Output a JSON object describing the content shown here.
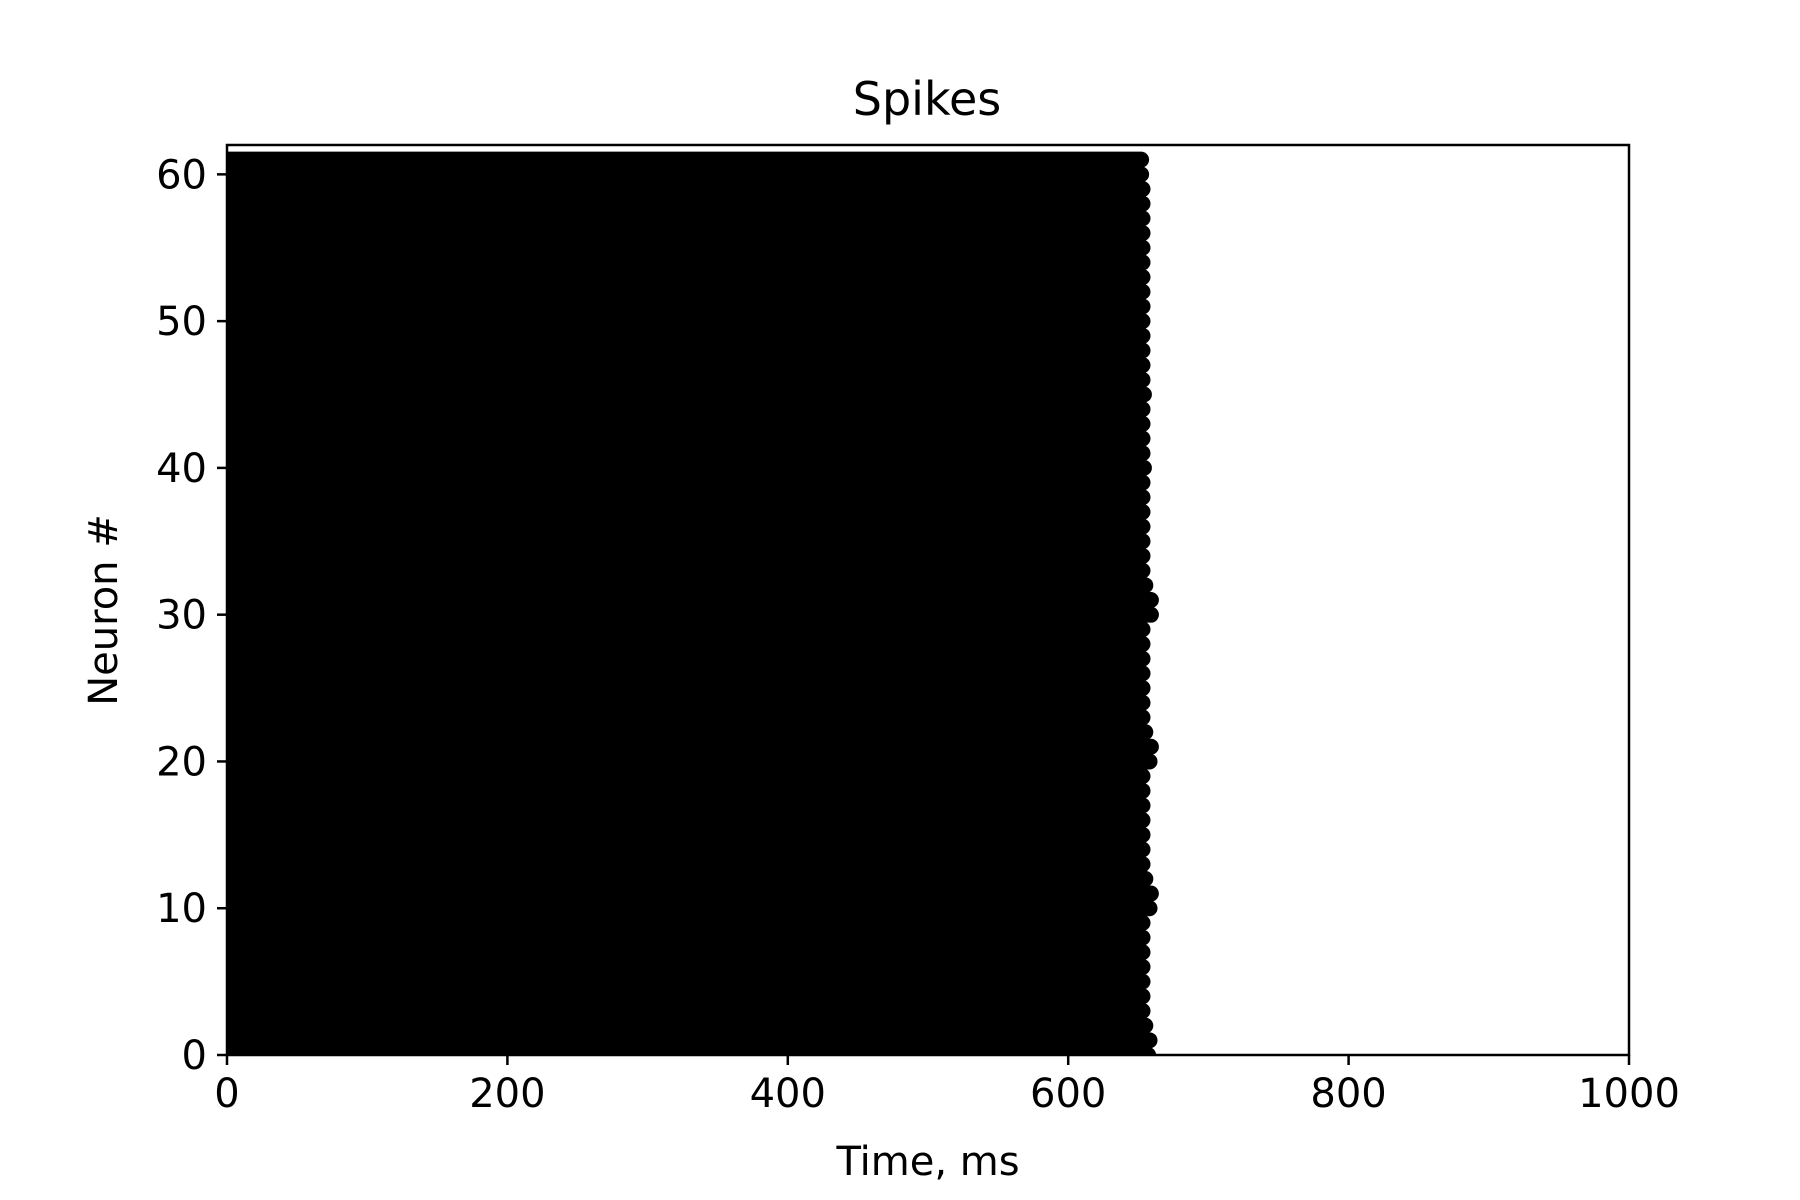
{
  "chart_data": {
    "type": "scatter",
    "title": "Spikes",
    "xlabel": "Time, ms",
    "ylabel": "Neuron #",
    "xlim": [
      0,
      1000
    ],
    "ylim": [
      0,
      62
    ],
    "xticks": [
      0,
      200,
      400,
      600,
      800,
      1000
    ],
    "yticks": [
      0,
      10,
      20,
      30,
      40,
      50,
      60
    ],
    "grid": false,
    "legend": "none",
    "marker_color": "#000000",
    "neurons": {
      "from": 0,
      "to": 61
    },
    "spike_window_ms": [
      0,
      655
    ],
    "spike_interval_ms": 2,
    "last_spike_ms": {
      "default": 653,
      "by_neuron": {
        "0": 657,
        "1": 658,
        "2": 655,
        "10": 658,
        "11": 659,
        "12": 655,
        "20": 658,
        "21": 659,
        "22": 655,
        "30": 659,
        "31": 659,
        "32": 655,
        "40": 654,
        "45": 654,
        "50": 653,
        "55": 653,
        "60": 652,
        "61": 652
      }
    }
  }
}
